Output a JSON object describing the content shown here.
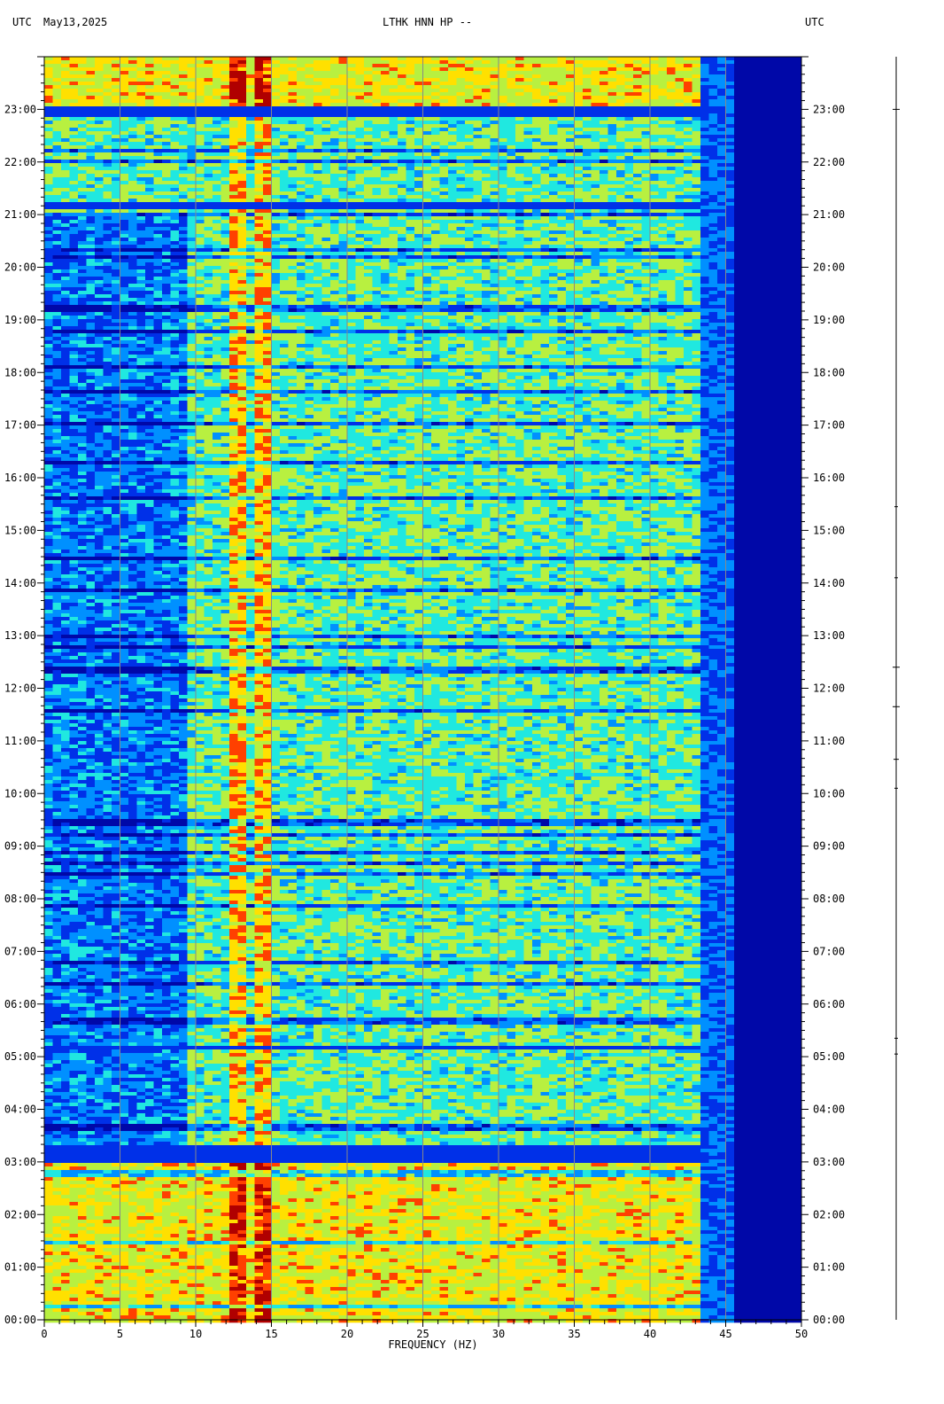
{
  "header": {
    "left_tz": "UTC",
    "date": "May13,2025",
    "title": "LTHK HNN HP --",
    "right_tz": "UTC"
  },
  "chart_data": {
    "type": "heatmap",
    "title": "LTHK HNN HP --",
    "xlabel": "FREQUENCY (HZ)",
    "ylabel": "",
    "xlim": [
      0,
      50
    ],
    "ylim_hours": [
      0,
      24
    ],
    "x_ticks": [
      "0",
      "5",
      "10",
      "15",
      "20",
      "25",
      "30",
      "35",
      "40",
      "45",
      "50"
    ],
    "y_ticks": [
      "00:00",
      "01:00",
      "02:00",
      "03:00",
      "04:00",
      "05:00",
      "06:00",
      "07:00",
      "08:00",
      "09:00",
      "10:00",
      "11:00",
      "12:00",
      "13:00",
      "14:00",
      "15:00",
      "16:00",
      "17:00",
      "18:00",
      "19:00",
      "20:00",
      "21:00",
      "22:00",
      "23:00"
    ],
    "gridlines_hz": [
      5,
      10,
      15,
      20,
      25,
      30,
      35,
      40,
      45
    ],
    "colormap": [
      "#0008a8",
      "#0030e8",
      "#0090ff",
      "#20e8e0",
      "#b8f040",
      "#ffe000",
      "#ff4000",
      "#b00000"
    ],
    "features": {
      "spectral_rolloff_hz": 43,
      "persistent_lines_hz": [
        12.7,
        14.3
      ],
      "quiet_bands_utc": [
        "22:55-23:05",
        "21:10-21:15",
        "05:10-05:15",
        "03:00-03:20"
      ],
      "high_energy_periods_utc": [
        "00:00-03:00",
        "23:00-24:00"
      ],
      "low_freq_quiet_utc": "03:00-21:00"
    }
  },
  "colors": {
    "background": "#ffffff",
    "gridline": "#888888",
    "axis": "#000000"
  }
}
